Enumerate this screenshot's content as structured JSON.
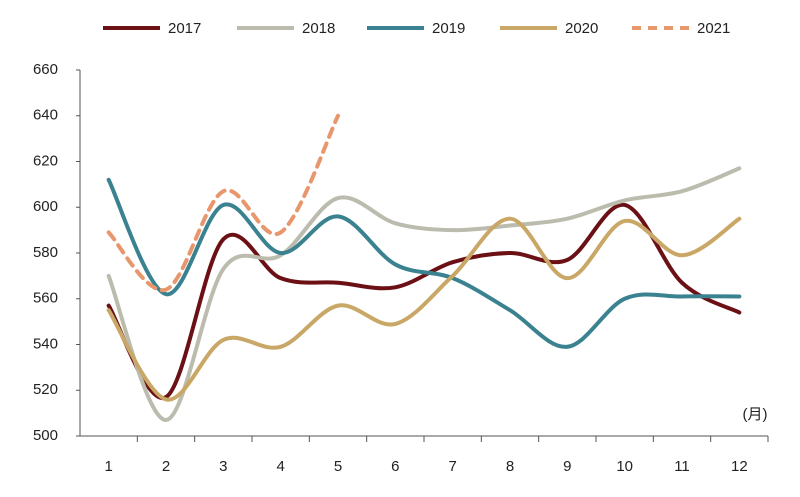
{
  "chart_data": {
    "type": "line",
    "categories": [
      "1",
      "2",
      "3",
      "4",
      "5",
      "6",
      "7",
      "8",
      "9",
      "10",
      "11",
      "12"
    ],
    "x_label": "(月)",
    "series": [
      {
        "name": "2017",
        "color": "#6b1014",
        "values": [
          557,
          517,
          586,
          569,
          567,
          565,
          576,
          580,
          577,
          601,
          567,
          554
        ]
      },
      {
        "name": "2018",
        "color": "#bcbcae",
        "values": [
          570,
          507,
          573,
          579,
          604,
          593,
          590,
          592,
          595,
          603,
          607,
          617
        ]
      },
      {
        "name": "2019",
        "color": "#3b8291",
        "values": [
          612,
          562,
          601,
          580,
          596,
          575,
          569,
          555,
          539,
          560,
          561,
          561
        ]
      },
      {
        "name": "2020",
        "color": "#c9a766",
        "values": [
          555,
          516,
          542,
          539,
          557,
          549,
          570,
          595,
          569,
          594,
          579,
          595
        ]
      },
      {
        "name": "2021",
        "color": "#e8966c",
        "dashed": true,
        "values": [
          589,
          564,
          607,
          589,
          640,
          null,
          null,
          null,
          null,
          null,
          null,
          null
        ]
      }
    ],
    "ylim": [
      500,
      660
    ],
    "yticks": [
      500,
      520,
      540,
      560,
      580,
      600,
      620,
      640,
      660
    ],
    "legend": "top"
  }
}
